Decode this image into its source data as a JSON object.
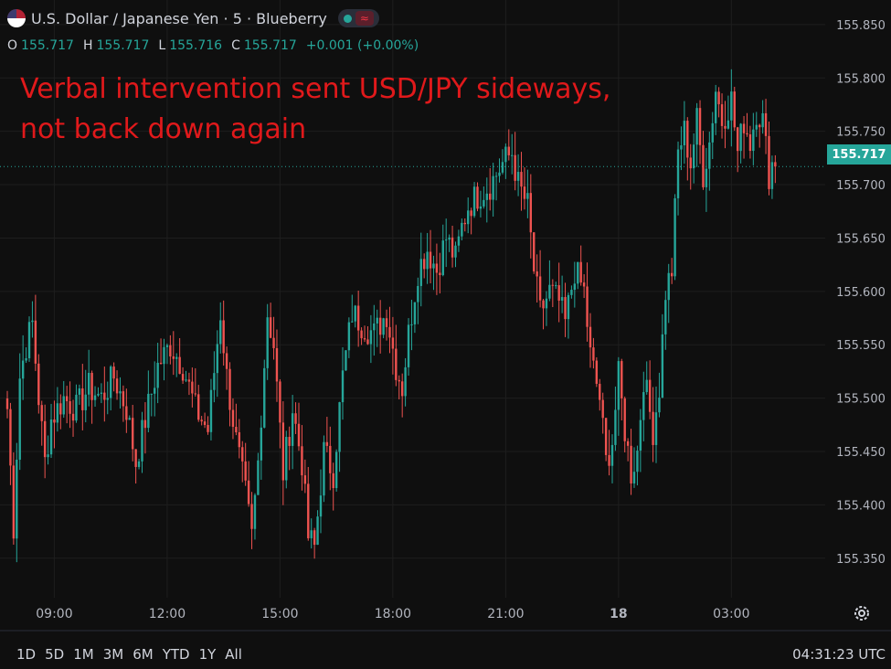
{
  "header": {
    "symbol_title": "U.S. Dollar / Japanese Yen · 5 · Blueberry",
    "ohlc": {
      "o_label": "O",
      "o_value": "155.717",
      "h_label": "H",
      "h_value": "155.717",
      "l_label": "L",
      "l_value": "155.716",
      "c_label": "C",
      "c_value": "155.717",
      "change": "+0.001 (+0.00%)"
    }
  },
  "annotation": {
    "line1": "Verbal intervention sent USD/JPY sideways,",
    "line2": "not back down again"
  },
  "current_price_label": "155.717",
  "ranges": [
    "1D",
    "5D",
    "1M",
    "3M",
    "6M",
    "YTD",
    "1Y",
    "All"
  ],
  "clock": "04:31:23 UTC",
  "colors": {
    "up": "#26a69a",
    "down": "#ef5350",
    "annotation": "#e0191b",
    "background": "#0f0f0f",
    "grid": "#1e1e1e"
  },
  "chart_data": {
    "type": "candlestick",
    "title": "U.S. Dollar / Japanese Yen · 5 · Blueberry",
    "y_ticks": [
      155.35,
      155.4,
      155.45,
      155.5,
      155.55,
      155.6,
      155.65,
      155.7,
      155.75,
      155.8,
      155.85
    ],
    "y_tick_labels": [
      "155.350",
      "155.400",
      "155.450",
      "155.500",
      "155.550",
      "155.600",
      "155.650",
      "155.700",
      "155.750",
      "155.800",
      "155.850"
    ],
    "ylim": [
      155.325,
      155.873
    ],
    "x_ticks": [
      {
        "label": "09:00",
        "bar": 15
      },
      {
        "label": "12:00",
        "bar": 51
      },
      {
        "label": "15:00",
        "bar": 87
      },
      {
        "label": "18:00",
        "bar": 123
      },
      {
        "label": "21:00",
        "bar": 159
      },
      {
        "label": "18",
        "bar": 195
      },
      {
        "label": "03:00",
        "bar": 231
      }
    ],
    "current_price": 155.717,
    "close_path": [
      [
        0,
        155.49
      ],
      [
        2,
        155.38
      ],
      [
        4,
        155.52
      ],
      [
        6,
        155.55
      ],
      [
        8,
        155.57
      ],
      [
        10,
        155.5
      ],
      [
        12,
        155.44
      ],
      [
        14,
        155.48
      ],
      [
        18,
        155.5
      ],
      [
        22,
        155.49
      ],
      [
        26,
        155.51
      ],
      [
        30,
        155.5
      ],
      [
        34,
        155.52
      ],
      [
        38,
        155.49
      ],
      [
        41,
        155.44
      ],
      [
        44,
        155.48
      ],
      [
        48,
        155.53
      ],
      [
        52,
        155.55
      ],
      [
        56,
        155.53
      ],
      [
        60,
        155.49
      ],
      [
        64,
        155.47
      ],
      [
        68,
        155.58
      ],
      [
        70,
        155.52
      ],
      [
        73,
        155.46
      ],
      [
        76,
        155.41
      ],
      [
        78,
        155.37
      ],
      [
        80,
        155.44
      ],
      [
        83,
        155.58
      ],
      [
        85,
        155.55
      ],
      [
        88,
        155.43
      ],
      [
        91,
        155.49
      ],
      [
        94,
        155.44
      ],
      [
        96,
        155.37
      ],
      [
        98,
        155.36
      ],
      [
        101,
        155.45
      ],
      [
        104,
        155.43
      ],
      [
        107,
        155.52
      ],
      [
        110,
        155.58
      ],
      [
        113,
        155.57
      ],
      [
        117,
        155.56
      ],
      [
        121,
        155.58
      ],
      [
        124,
        155.53
      ],
      [
        126,
        155.51
      ],
      [
        128,
        155.56
      ],
      [
        131,
        155.62
      ],
      [
        134,
        155.64
      ],
      [
        137,
        155.62
      ],
      [
        140,
        155.65
      ],
      [
        143,
        155.63
      ],
      [
        145,
        155.66
      ],
      [
        147,
        155.68
      ],
      [
        150,
        155.69
      ],
      [
        154,
        155.7
      ],
      [
        158,
        155.72
      ],
      [
        161,
        155.73
      ],
      [
        163,
        155.7
      ],
      [
        166,
        155.68
      ],
      [
        168,
        155.62
      ],
      [
        170,
        155.58
      ],
      [
        173,
        155.6
      ],
      [
        176,
        155.59
      ],
      [
        178,
        155.57
      ],
      [
        181,
        155.62
      ],
      [
        184,
        155.6
      ],
      [
        186,
        155.54
      ],
      [
        189,
        155.5
      ],
      [
        191,
        155.44
      ],
      [
        193,
        155.46
      ],
      [
        195,
        155.52
      ],
      [
        197,
        155.47
      ],
      [
        199,
        155.43
      ],
      [
        201,
        155.45
      ],
      [
        203,
        155.52
      ],
      [
        206,
        155.47
      ],
      [
        208,
        155.51
      ],
      [
        210,
        155.6
      ],
      [
        212,
        155.62
      ],
      [
        214,
        155.73
      ],
      [
        216,
        155.75
      ],
      [
        218,
        155.72
      ],
      [
        220,
        155.76
      ],
      [
        222,
        155.71
      ],
      [
        224,
        155.74
      ],
      [
        226,
        155.79
      ],
      [
        228,
        155.76
      ],
      [
        231,
        155.78
      ],
      [
        233,
        155.73
      ],
      [
        235,
        155.76
      ],
      [
        237,
        155.74
      ],
      [
        239,
        155.77
      ],
      [
        241,
        155.76
      ],
      [
        243,
        155.71
      ],
      [
        244,
        155.72
      ],
      [
        245,
        155.717
      ]
    ]
  }
}
